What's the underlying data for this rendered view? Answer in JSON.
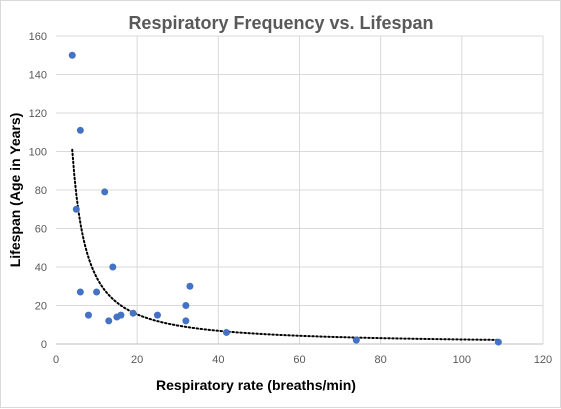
{
  "chart_data": {
    "type": "scatter",
    "title": "Respiratory Frequency vs. Lifespan",
    "xlabel": "Respiratory rate (breaths/min)",
    "ylabel": "Lifespan (Age in Years)",
    "xlim": [
      0,
      120
    ],
    "ylim": [
      0,
      160
    ],
    "x_ticks": [
      0,
      20,
      40,
      60,
      80,
      100,
      120
    ],
    "y_ticks": [
      0,
      20,
      40,
      60,
      80,
      100,
      120,
      140,
      160
    ],
    "grid": true,
    "legend": "none",
    "colors": {
      "points": "#4472c4",
      "trendline": "#000000"
    },
    "trendline": {
      "type": "power",
      "style": "dotted",
      "x_range": [
        4,
        109
      ]
    },
    "points": [
      {
        "x": 4,
        "y": 150
      },
      {
        "x": 6,
        "y": 111
      },
      {
        "x": 5,
        "y": 70
      },
      {
        "x": 6,
        "y": 27
      },
      {
        "x": 8,
        "y": 15
      },
      {
        "x": 10,
        "y": 27
      },
      {
        "x": 12,
        "y": 79
      },
      {
        "x": 13,
        "y": 12
      },
      {
        "x": 14,
        "y": 40
      },
      {
        "x": 15,
        "y": 14
      },
      {
        "x": 16,
        "y": 15
      },
      {
        "x": 19,
        "y": 16
      },
      {
        "x": 25,
        "y": 15
      },
      {
        "x": 32,
        "y": 20
      },
      {
        "x": 32,
        "y": 12
      },
      {
        "x": 33,
        "y": 30
      },
      {
        "x": 42,
        "y": 6
      },
      {
        "x": 74,
        "y": 2
      },
      {
        "x": 109,
        "y": 1
      }
    ]
  }
}
